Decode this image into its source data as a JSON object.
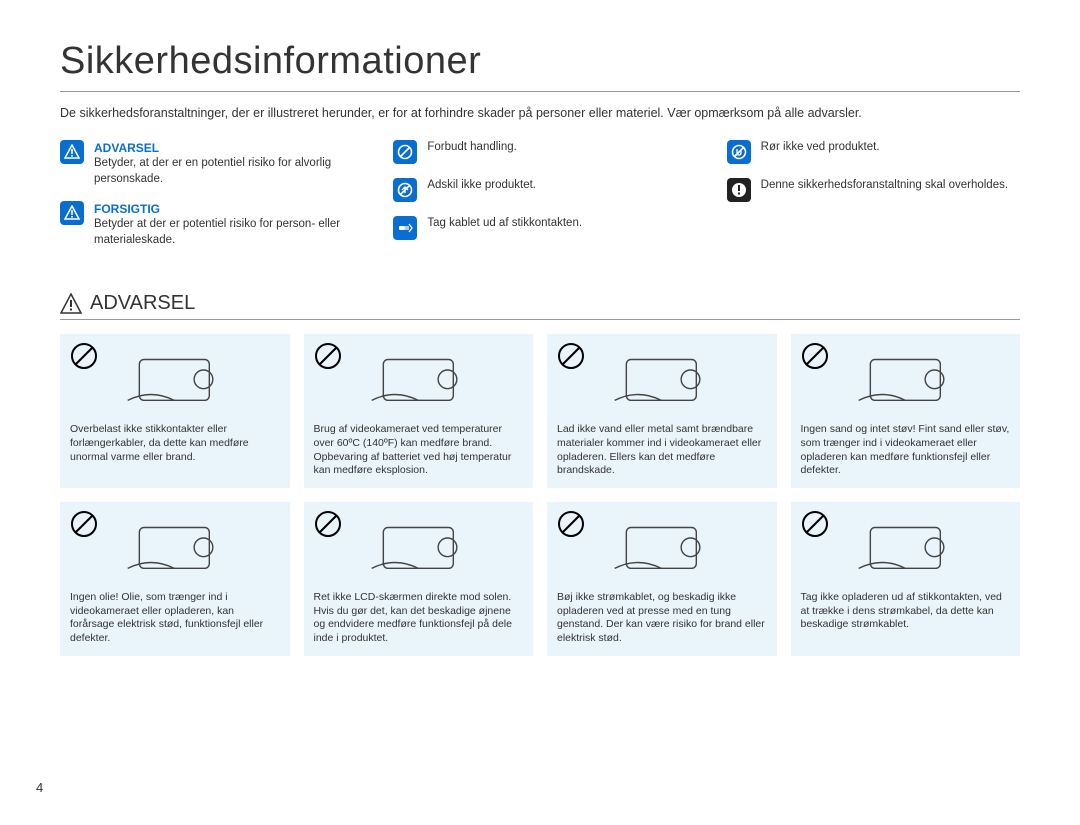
{
  "page_number": "4",
  "title": "Sikkerhedsinformationer",
  "intro": "De sikkerhedsforanstaltninger, der er illustreret herunder, er for at forhindre skader på personer eller materiel. Vær opmærksom på alle advarsler.",
  "colors": {
    "accent_blue": "#0a6ed1",
    "icon_dark": "#222222",
    "card_bg": "#e9f4fb",
    "text": "#333333",
    "rule": "#999999"
  },
  "legend": {
    "col1": [
      {
        "icon": "warning-triangle",
        "icon_bg": "blue",
        "title": "ADVARSEL",
        "title_class": "legend-title-advarsel",
        "text": "Betyder, at der er en potentiel risiko for alvorlig personskade."
      },
      {
        "icon": "warning-triangle",
        "icon_bg": "blue",
        "title": "FORSIGTIG",
        "title_class": "legend-title-forsigtig",
        "text": "Betyder at der er potentiel risiko for person- eller materialeskade."
      }
    ],
    "col2": [
      {
        "icon": "prohibit",
        "icon_bg": "blue",
        "text": "Forbudt handling."
      },
      {
        "icon": "no-disassemble",
        "icon_bg": "blue",
        "text": "Adskil ikke produktet."
      },
      {
        "icon": "unplug",
        "icon_bg": "blue",
        "text": "Tag kablet ud af stikkontakten."
      }
    ],
    "col3": [
      {
        "icon": "no-touch",
        "icon_bg": "blue",
        "text": "Rør ikke ved produktet."
      },
      {
        "icon": "exclaim",
        "icon_bg": "dark",
        "text": "Denne sikkerhedsforanstaltning skal overholdes."
      }
    ]
  },
  "section_title": "ADVARSEL",
  "cards_row1": [
    {
      "illus": "overload-plug",
      "text": "Overbelast ikke stikkontakter eller forlængerkabler, da dette kan medføre unormal varme eller brand."
    },
    {
      "illus": "hot-camera",
      "text": "Brug af videokameraet ved temperaturer over 60ºC (140ºF) kan medføre brand. Opbevaring af batteriet ved høj temperatur kan medføre eksplosion."
    },
    {
      "illus": "water-metal",
      "text": "Lad ikke vand eller metal samt brændbare materialer kommer ind i videokameraet eller opladeren. Ellers kan det medføre brandskade."
    },
    {
      "illus": "sand-dust",
      "text": "Ingen sand og intet støv! Fint sand eller støv, som trænger ind i videokameraet eller opladeren kan medføre funktionsfejl eller defekter."
    }
  ],
  "cards_row2": [
    {
      "illus": "oil",
      "text": "Ingen olie! Olie, som trænger ind i videokameraet eller opladeren, kan forårsage elektrisk stød, funktionsfejl eller defekter."
    },
    {
      "illus": "sun-lcd",
      "text": "Ret ikke LCD-skærmen direkte mod solen. Hvis du gør det, kan det beskadige øjnene og endvidere medføre funktionsfejl på dele inde i produktet."
    },
    {
      "illus": "bend-cable",
      "text": "Bøj ikke strømkablet, og beskadig ikke opladeren ved at presse med en tung genstand. Der kan være risiko for brand eller elektrisk stød."
    },
    {
      "illus": "pull-plug",
      "text": "Tag ikke opladeren ud af stikkontakten, ved at trække i dens strømkabel, da dette kan beskadige strømkablet."
    }
  ]
}
